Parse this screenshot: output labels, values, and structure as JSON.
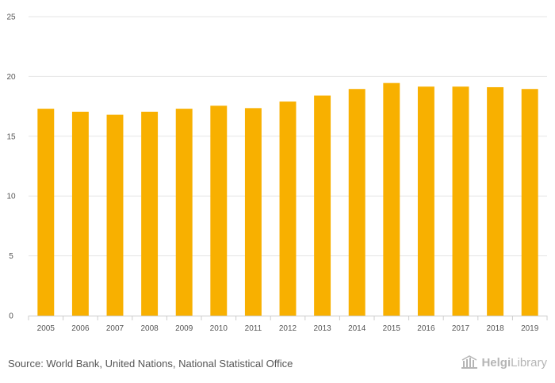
{
  "chart_data": {
    "type": "bar",
    "title": "",
    "xlabel": "",
    "ylabel": "",
    "categories": [
      "2005",
      "2006",
      "2007",
      "2008",
      "2009",
      "2010",
      "2011",
      "2012",
      "2013",
      "2014",
      "2015",
      "2016",
      "2017",
      "2018",
      "2019"
    ],
    "values": [
      17.3,
      17.05,
      16.8,
      17.05,
      17.3,
      17.55,
      17.35,
      17.9,
      18.4,
      18.95,
      19.45,
      19.15,
      19.15,
      19.1,
      18.95
    ],
    "ylim": [
      0,
      25
    ],
    "yticks": [
      0,
      5,
      10,
      15,
      20,
      25
    ],
    "bar_color": "#f8b000",
    "grid": true
  },
  "footer": {
    "source": "Source: World Bank, United Nations, National Statistical Office",
    "logo_prefix": "Helgi",
    "logo_suffix": "Library"
  }
}
